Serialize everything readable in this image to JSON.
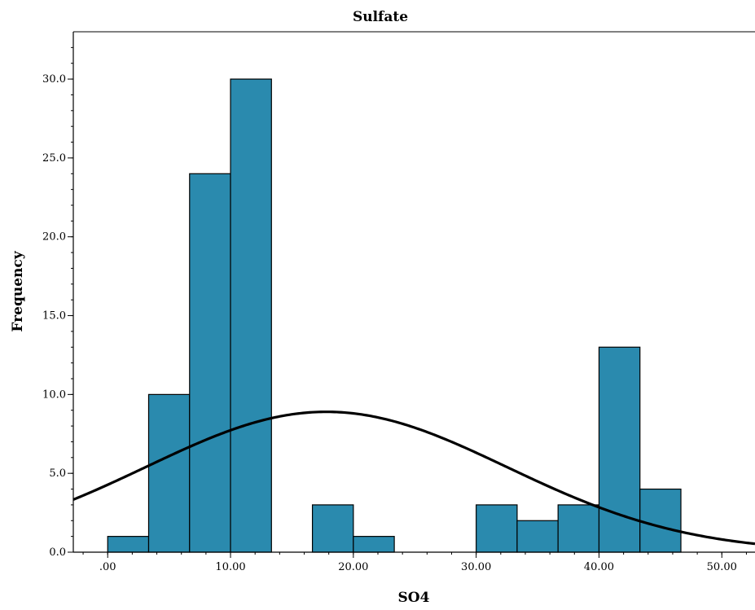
{
  "chart_data": {
    "type": "bar",
    "title": "Sulfate",
    "xlabel": "SO4",
    "ylabel": "Frequency",
    "bin_width": 3.3333,
    "bins": [
      {
        "x0": 0.0,
        "x1": 3.3333,
        "count": 1
      },
      {
        "x0": 3.3333,
        "x1": 6.6667,
        "count": 10
      },
      {
        "x0": 6.6667,
        "x1": 10.0,
        "count": 24
      },
      {
        "x0": 10.0,
        "x1": 13.3333,
        "count": 30
      },
      {
        "x0": 13.3333,
        "x1": 16.6667,
        "count": 0
      },
      {
        "x0": 16.6667,
        "x1": 20.0,
        "count": 3
      },
      {
        "x0": 20.0,
        "x1": 23.3333,
        "count": 1
      },
      {
        "x0": 23.3333,
        "x1": 26.6667,
        "count": 0
      },
      {
        "x0": 26.6667,
        "x1": 30.0,
        "count": 0
      },
      {
        "x0": 30.0,
        "x1": 33.3333,
        "count": 3
      },
      {
        "x0": 33.3333,
        "x1": 36.6667,
        "count": 2
      },
      {
        "x0": 36.6667,
        "x1": 40.0,
        "count": 3
      },
      {
        "x0": 40.0,
        "x1": 43.3333,
        "count": 13
      },
      {
        "x0": 43.3333,
        "x1": 46.6667,
        "count": 4
      }
    ],
    "normal_curve": {
      "mean": 17.8,
      "sd": 14.7,
      "peak": 8.9
    },
    "xlim": [
      -2.8,
      52.7
    ],
    "ylim": [
      0,
      33
    ],
    "x_ticks": [
      ".00",
      "10.00",
      "20.00",
      "30.00",
      "40.00",
      "50.00"
    ],
    "x_tick_values": [
      0,
      10,
      20,
      30,
      40,
      50
    ],
    "y_ticks": [
      "0.0",
      "5.0",
      "10.0",
      "15.0",
      "20.0",
      "25.0",
      "30.0"
    ],
    "y_tick_values": [
      0,
      5,
      10,
      15,
      20,
      25,
      30
    ],
    "grid": false,
    "colors": {
      "bar": "#2a8aae",
      "bar_edge": "#000000",
      "curve": "#000000"
    }
  }
}
